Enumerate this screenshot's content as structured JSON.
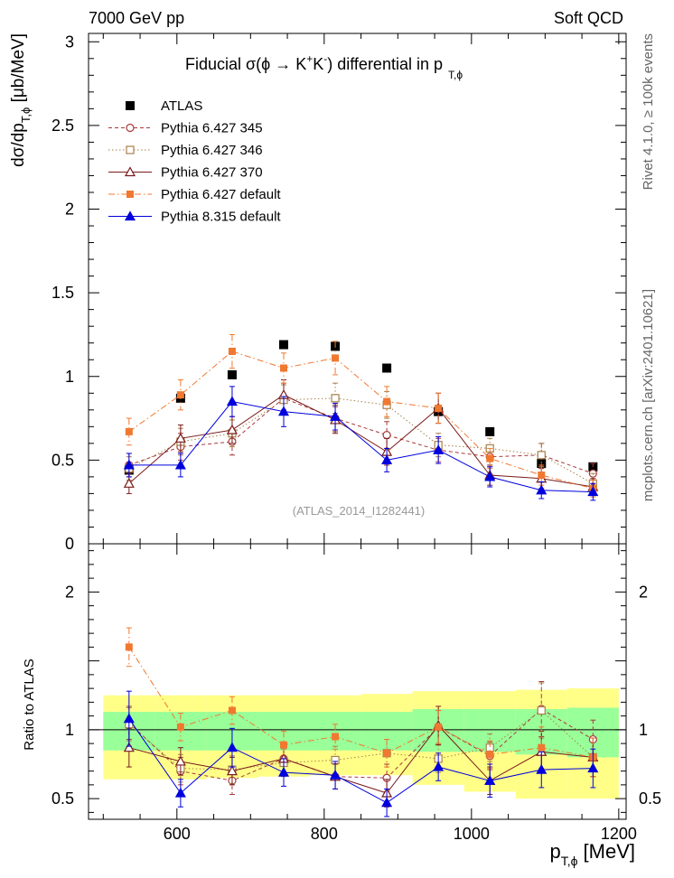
{
  "header": {
    "left": "7000 GeV pp",
    "right": "Soft QCD"
  },
  "side": {
    "rivet": "Rivet 4.1.0, ≥ 100k events",
    "mcplots": "mcplots.cern.ch [arXiv:2401.10621]"
  },
  "chart_data": [
    {
      "type": "scatter",
      "title": "Fiducial σ(ϕ → K⁺K⁻) differential in p_T,ϕ",
      "title_main": "Fiducial σ(ϕ →  K",
      "title_k": "K",
      "title_rest": ") differential in p",
      "title_sup_plus": "+",
      "title_sup_minus": "-",
      "title_sub": "T,ϕ",
      "ylabel": "dσ/dp",
      "ylabel_sub": "T,ϕ",
      "ylabel_unit": " [μb/MeV]",
      "watermark": "(ATLAS_2014_I1282441)",
      "ylim": [
        0,
        3.05
      ],
      "xlim": [
        480,
        1210
      ],
      "yticks": [
        {
          "v": 0,
          "label": "0"
        },
        {
          "v": 0.5,
          "label": "0.5"
        },
        {
          "v": 1,
          "label": "1"
        },
        {
          "v": 1.5,
          "label": "1.5"
        },
        {
          "v": 2,
          "label": "2"
        },
        {
          "v": 2.5,
          "label": "2.5"
        },
        {
          "v": 3,
          "label": "3"
        }
      ],
      "x": [
        535,
        605,
        675,
        745,
        815,
        885,
        955,
        1025,
        1095,
        1165
      ],
      "series": [
        {
          "name": "ATLAS",
          "color": "#000000",
          "marker": "square",
          "line": "none",
          "values": [
            0.44,
            0.87,
            1.01,
            1.19,
            1.18,
            1.05,
            0.79,
            0.67,
            0.48,
            0.46
          ],
          "errors": [
            0.02,
            0.02,
            0.02,
            0.02,
            0.02,
            0.02,
            0.02,
            0.02,
            0.02,
            0.02
          ]
        },
        {
          "name": "Pythia 6.427 345",
          "color": "#a83a3a",
          "marker": "circle-open",
          "line": "dashed",
          "values": [
            0.47,
            0.58,
            0.61,
            0.87,
            0.75,
            0.65,
            0.56,
            0.52,
            0.53,
            0.42
          ],
          "errors": [
            0.07,
            0.08,
            0.08,
            0.09,
            0.08,
            0.08,
            0.07,
            0.06,
            0.07,
            0.06
          ]
        },
        {
          "name": "Pythia 6.427 346",
          "color": "#a8804a",
          "marker": "square-open",
          "line": "dotted",
          "values": [
            0.45,
            0.61,
            0.66,
            0.86,
            0.87,
            0.83,
            0.59,
            0.57,
            0.53,
            0.36
          ],
          "errors": [
            0.07,
            0.08,
            0.08,
            0.09,
            0.09,
            0.08,
            0.07,
            0.06,
            0.07,
            0.06
          ]
        },
        {
          "name": "Pythia 6.427 370",
          "color": "#7a1a1a",
          "marker": "triangle-open",
          "line": "solid",
          "values": [
            0.36,
            0.63,
            0.68,
            0.89,
            0.74,
            0.55,
            0.81,
            0.41,
            0.39,
            0.34
          ],
          "errors": [
            0.06,
            0.08,
            0.08,
            0.09,
            0.08,
            0.08,
            0.09,
            0.06,
            0.06,
            0.05
          ]
        },
        {
          "name": "Pythia 6.427 default",
          "color": "#f07830",
          "marker": "square",
          "line": "dashdot",
          "values": [
            0.67,
            0.89,
            1.15,
            1.05,
            1.11,
            0.85,
            0.81,
            0.51,
            0.41,
            0.33
          ],
          "errors": [
            0.08,
            0.09,
            0.1,
            0.09,
            0.1,
            0.09,
            0.09,
            0.06,
            0.06,
            0.05
          ]
        },
        {
          "name": "Pythia 8.315 default",
          "color": "#0000dd",
          "marker": "triangle",
          "line": "solid",
          "values": [
            0.47,
            0.47,
            0.85,
            0.79,
            0.76,
            0.5,
            0.56,
            0.4,
            0.32,
            0.31
          ],
          "errors": [
            0.07,
            0.07,
            0.09,
            0.09,
            0.08,
            0.07,
            0.08,
            0.06,
            0.05,
            0.05
          ]
        }
      ]
    },
    {
      "type": "scatter",
      "title": "Ratio to ATLAS",
      "ylabel": "Ratio to ATLAS",
      "xlabel": "p",
      "xlabel_sub": "T,ϕ",
      "xlabel_unit": " [MeV]",
      "ylim": [
        0.35,
        2.35
      ],
      "xlim": [
        480,
        1210
      ],
      "yticks": [
        {
          "v": 0.5,
          "label": "0.5"
        },
        {
          "v": 1,
          "label": "1"
        },
        {
          "v": 2,
          "label": "2"
        }
      ],
      "xticks": [
        {
          "v": 600,
          "label": "600"
        },
        {
          "v": 800,
          "label": "800"
        },
        {
          "v": 1000,
          "label": "1000"
        },
        {
          "v": 1200,
          "label": "1200"
        }
      ],
      "x": [
        535,
        605,
        675,
        745,
        815,
        885,
        955,
        1025,
        1095,
        1165
      ],
      "bands": {
        "edges": [
          500,
          570,
          640,
          710,
          780,
          850,
          920,
          990,
          1060,
          1130,
          1200
        ],
        "green_upper": [
          1.13,
          1.13,
          1.13,
          1.13,
          1.13,
          1.13,
          1.15,
          1.15,
          1.15,
          1.16
        ],
        "green_lower": [
          0.85,
          0.85,
          0.85,
          0.85,
          0.85,
          0.85,
          0.84,
          0.84,
          0.82,
          0.8
        ],
        "yellow_upper": [
          1.25,
          1.25,
          1.25,
          1.25,
          1.25,
          1.26,
          1.28,
          1.28,
          1.29,
          1.3
        ],
        "yellow_lower": [
          0.64,
          0.64,
          0.65,
          0.66,
          0.67,
          0.67,
          0.6,
          0.55,
          0.5,
          0.5
        ],
        "green_color": "#99ff99",
        "yellow_color": "#ffff88"
      },
      "series": [
        {
          "name": "Pythia 6.427 345",
          "color": "#a83a3a",
          "marker": "circle-open",
          "line": "dashed",
          "values": [
            1.05,
            0.7,
            0.63,
            0.79,
            0.66,
            0.65,
            1.02,
            0.81,
            1.15,
            0.93
          ],
          "errors": [
            0.12,
            0.1,
            0.1,
            0.1,
            0.09,
            0.1,
            0.12,
            0.1,
            0.2,
            0.14
          ]
        },
        {
          "name": "Pythia 6.427 346",
          "color": "#a8804a",
          "marker": "square-open",
          "line": "dotted",
          "values": [
            1.04,
            0.72,
            0.71,
            0.76,
            0.78,
            0.83,
            0.79,
            0.87,
            1.14,
            0.8
          ],
          "errors": [
            0.12,
            0.1,
            0.1,
            0.1,
            0.1,
            0.1,
            0.1,
            0.1,
            0.2,
            0.14
          ]
        },
        {
          "name": "Pythia 6.427 370",
          "color": "#7a1a1a",
          "marker": "triangle-open",
          "line": "solid",
          "values": [
            0.87,
            0.77,
            0.7,
            0.79,
            0.66,
            0.54,
            1.03,
            0.63,
            0.84,
            0.8
          ],
          "errors": [
            0.14,
            0.1,
            0.1,
            0.1,
            0.09,
            0.1,
            0.14,
            0.1,
            0.15,
            0.14
          ]
        },
        {
          "name": "Pythia 6.427 default",
          "color": "#f07830",
          "marker": "square",
          "line": "dashdot",
          "values": [
            1.6,
            1.02,
            1.14,
            0.89,
            0.95,
            0.83,
            1.02,
            0.82,
            0.87,
            0.8
          ],
          "errors": [
            0.14,
            0.1,
            0.1,
            0.1,
            0.09,
            0.1,
            0.12,
            0.1,
            0.15,
            0.14
          ]
        },
        {
          "name": "Pythia 8.315 default",
          "color": "#0000dd",
          "marker": "triangle",
          "line": "solid",
          "values": [
            1.08,
            0.54,
            0.87,
            0.69,
            0.67,
            0.47,
            0.73,
            0.63,
            0.71,
            0.72
          ],
          "errors": [
            0.2,
            0.1,
            0.14,
            0.1,
            0.1,
            0.1,
            0.1,
            0.12,
            0.13,
            0.14
          ]
        }
      ]
    }
  ]
}
